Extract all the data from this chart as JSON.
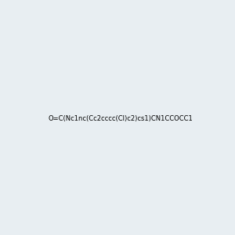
{
  "smiles": "O=C(Nc1nc(Cc2cccc(Cl)c2)cs1)CN1CCOCC1",
  "image_size": 300,
  "background_color": "#e8eef2"
}
